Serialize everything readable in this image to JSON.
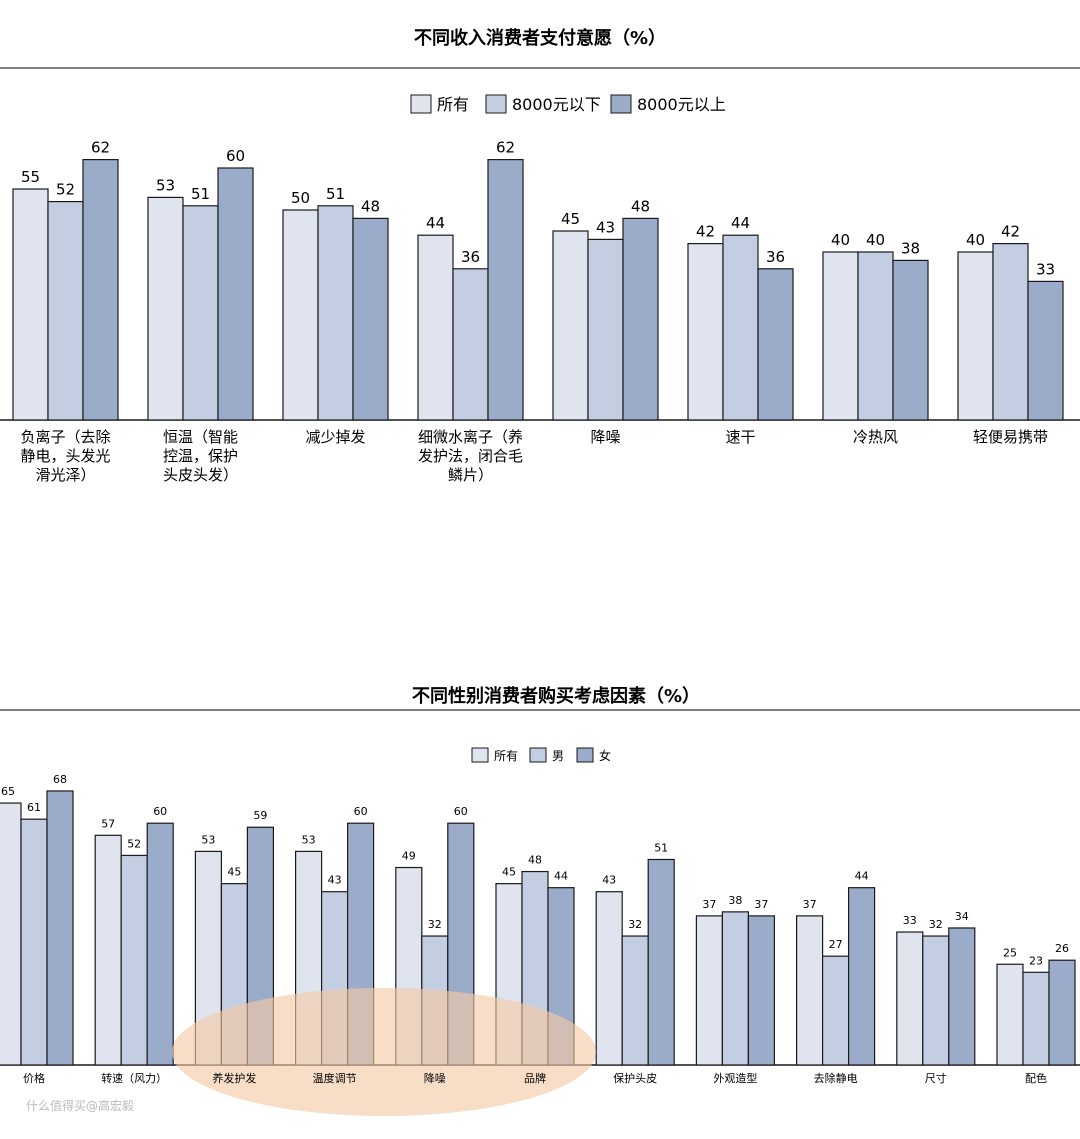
{
  "colors": {
    "all": "#dfe4ee",
    "mid": "#c4cee2",
    "high": "#9babca",
    "stroke": "#1a1a1a",
    "highlight": "#f6c9a4"
  },
  "watermark": "什么值得买@高宏毅",
  "chart_data": [
    {
      "type": "bar",
      "title": "不同收入消费者支付意愿（%）",
      "categories": [
        [
          "负离子（去除",
          "静电，头发光",
          "滑光泽）"
        ],
        [
          "恒温（智能",
          "控温，保护",
          "头皮头发）"
        ],
        [
          "减少掉发"
        ],
        [
          "细微水离子（养",
          "发护法，闭合毛",
          "鳞片）"
        ],
        [
          "降噪"
        ],
        [
          "速干"
        ],
        [
          "冷热风"
        ],
        [
          "轻便易携带"
        ]
      ],
      "series": [
        {
          "name": "所有",
          "values": [
            55,
            53,
            50,
            44,
            45,
            42,
            40,
            40
          ]
        },
        {
          "name": "8000元以下",
          "values": [
            52,
            51,
            51,
            36,
            43,
            44,
            40,
            42
          ]
        },
        {
          "name": "8000元以上",
          "values": [
            62,
            60,
            48,
            62,
            48,
            36,
            38,
            33
          ]
        }
      ],
      "legend_position": "top-center",
      "grid": false
    },
    {
      "type": "bar",
      "title": "不同性别消费者购买考虑因素（%）",
      "categories": [
        [
          "价格"
        ],
        [
          "转速（风力）"
        ],
        [
          "养发护发"
        ],
        [
          "温度调节"
        ],
        [
          "降噪"
        ],
        [
          "品牌"
        ],
        [
          "保护头皮"
        ],
        [
          "外观造型"
        ],
        [
          "去除静电"
        ],
        [
          "尺寸"
        ],
        [
          "配色"
        ]
      ],
      "series": [
        {
          "name": "所有",
          "values": [
            65,
            57,
            53,
            53,
            49,
            45,
            43,
            37,
            37,
            33,
            25
          ]
        },
        {
          "name": "男",
          "values": [
            61,
            52,
            45,
            43,
            32,
            48,
            32,
            38,
            27,
            32,
            23
          ]
        },
        {
          "name": "女",
          "values": [
            68,
            60,
            59,
            60,
            60,
            44,
            51,
            37,
            44,
            34,
            26
          ]
        }
      ],
      "legend_position": "top-center",
      "grid": false,
      "annotation": "orange ellipse highlighting 养发护发, 温度调节, 降噪, 品牌"
    }
  ]
}
